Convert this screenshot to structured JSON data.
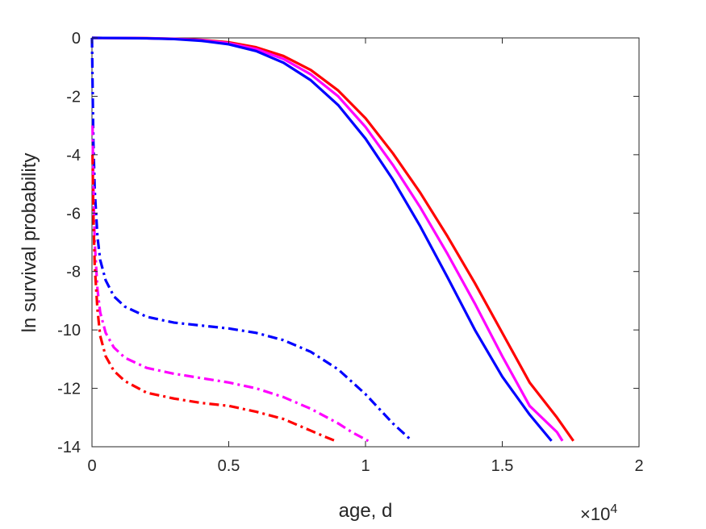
{
  "chart_data": {
    "type": "line",
    "xlabel": "age, d",
    "ylabel": "ln survival probability",
    "x_multiplier_label": {
      "base": "×10",
      "exponent": "4"
    },
    "xlim": [
      0,
      2
    ],
    "ylim": [
      -14,
      0
    ],
    "x_ticks": [
      "0",
      "0.5",
      "1",
      "1.5",
      "2"
    ],
    "y_ticks": [
      "0",
      "-2",
      "-4",
      "-6",
      "-8",
      "-10",
      "-12",
      "-14"
    ],
    "x_tick_values": [
      0,
      0.5,
      1,
      1.5,
      2
    ],
    "y_tick_values": [
      0,
      -2,
      -4,
      -6,
      -8,
      -10,
      -12,
      -14
    ],
    "grid": false,
    "series": [
      {
        "style": "solid",
        "color": "#ff0000",
        "x": [
          0.0,
          0.1,
          0.2,
          0.3,
          0.4,
          0.5,
          0.6,
          0.7,
          0.8,
          0.9,
          1.0,
          1.1,
          1.2,
          1.3,
          1.4,
          1.5,
          1.6,
          1.7,
          1.76
        ],
        "y": [
          0,
          -0.003,
          -0.01,
          -0.03,
          -0.07,
          -0.15,
          -0.32,
          -0.62,
          -1.1,
          -1.8,
          -2.75,
          -3.95,
          -5.3,
          -6.8,
          -8.4,
          -10.1,
          -11.8,
          -13.0,
          -13.8
        ]
      },
      {
        "style": "solid",
        "color": "#ff00ff",
        "x": [
          0.0,
          0.1,
          0.2,
          0.3,
          0.4,
          0.5,
          0.6,
          0.7,
          0.8,
          0.9,
          1.0,
          1.1,
          1.2,
          1.3,
          1.4,
          1.5,
          1.6,
          1.7,
          1.72
        ],
        "y": [
          0,
          -0.004,
          -0.012,
          -0.035,
          -0.08,
          -0.18,
          -0.38,
          -0.72,
          -1.25,
          -2.0,
          -3.05,
          -4.35,
          -5.8,
          -7.4,
          -9.1,
          -10.9,
          -12.6,
          -13.5,
          -13.8
        ]
      },
      {
        "style": "solid",
        "color": "#0000ff",
        "x": [
          0.0,
          0.1,
          0.2,
          0.3,
          0.4,
          0.5,
          0.6,
          0.7,
          0.8,
          0.9,
          1.0,
          1.1,
          1.2,
          1.3,
          1.4,
          1.5,
          1.6,
          1.68
        ],
        "y": [
          0,
          -0.005,
          -0.015,
          -0.04,
          -0.1,
          -0.22,
          -0.45,
          -0.85,
          -1.45,
          -2.3,
          -3.45,
          -4.85,
          -6.45,
          -8.2,
          -10.0,
          -11.6,
          -12.9,
          -13.8
        ]
      },
      {
        "style": "dashdot",
        "color": "#0000ff",
        "x": [
          0.0,
          0.002,
          0.005,
          0.01,
          0.02,
          0.03,
          0.05,
          0.08,
          0.12,
          0.2,
          0.3,
          0.4,
          0.5,
          0.6,
          0.7,
          0.8,
          0.9,
          1.0,
          1.05,
          1.1,
          1.17
        ],
        "y": [
          0,
          -1.5,
          -3.5,
          -5.2,
          -6.8,
          -7.6,
          -8.3,
          -8.85,
          -9.2,
          -9.55,
          -9.75,
          -9.85,
          -9.95,
          -10.1,
          -10.35,
          -10.75,
          -11.35,
          -12.2,
          -12.7,
          -13.2,
          -13.8
        ]
      },
      {
        "style": "dashdot",
        "color": "#ff00ff",
        "x": [
          0.002,
          0.005,
          0.01,
          0.02,
          0.03,
          0.05,
          0.08,
          0.12,
          0.2,
          0.3,
          0.4,
          0.5,
          0.6,
          0.7,
          0.8,
          0.9,
          0.95,
          1.01
        ],
        "y": [
          -3.0,
          -5.0,
          -7.0,
          -8.6,
          -9.4,
          -10.1,
          -10.6,
          -10.95,
          -11.3,
          -11.5,
          -11.65,
          -11.8,
          -12.0,
          -12.3,
          -12.7,
          -13.2,
          -13.5,
          -13.8
        ]
      },
      {
        "style": "dashdot",
        "color": "#ff0000",
        "x": [
          0.002,
          0.005,
          0.01,
          0.02,
          0.03,
          0.05,
          0.08,
          0.12,
          0.2,
          0.3,
          0.4,
          0.5,
          0.6,
          0.7,
          0.8,
          0.85,
          0.89
        ],
        "y": [
          -4.0,
          -6.0,
          -7.8,
          -9.3,
          -10.2,
          -10.9,
          -11.4,
          -11.75,
          -12.15,
          -12.35,
          -12.5,
          -12.6,
          -12.8,
          -13.05,
          -13.45,
          -13.65,
          -13.8
        ]
      }
    ]
  }
}
